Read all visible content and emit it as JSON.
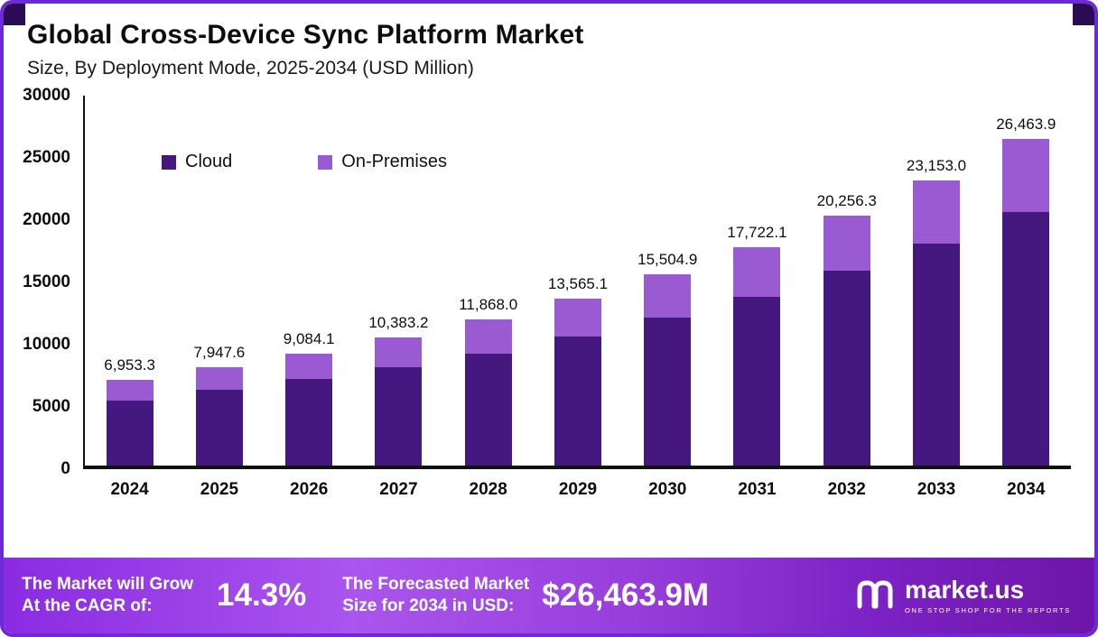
{
  "header": {
    "title": "Global Cross-Device Sync Platform Market",
    "subtitle": "Size, By Deployment Mode, 2025-2034 (USD Million)"
  },
  "chart_data": {
    "type": "bar",
    "stacked": true,
    "title": "Global Cross-Device Sync Platform Market",
    "subtitle": "Size, By Deployment Mode, 2025-2034 (USD Million)",
    "unit": "USD Million",
    "categories": [
      "2024",
      "2025",
      "2026",
      "2027",
      "2028",
      "2029",
      "2030",
      "2031",
      "2032",
      "2033",
      "2034"
    ],
    "series": [
      {
        "name": "Cloud",
        "color": "#44187e",
        "values": [
          5290,
          6150,
          7000,
          7950,
          9100,
          10450,
          12000,
          13700,
          15800,
          18000,
          20550
        ]
      },
      {
        "name": "On-Premises",
        "color": "#9a5bd2",
        "values": [
          1663.3,
          1797.6,
          2084.1,
          2433.2,
          2768.0,
          3115.1,
          3504.9,
          4022.1,
          4456.3,
          5153.0,
          5913.9
        ]
      }
    ],
    "totals": [
      6953.3,
      7947.6,
      9084.1,
      10383.2,
      11868.0,
      13565.1,
      15504.9,
      17722.1,
      20256.3,
      23153.0,
      26463.9
    ],
    "total_labels": [
      "6,953.3",
      "7,947.6",
      "9,084.1",
      "10,383.2",
      "11,868.0",
      "13,565.1",
      "15,504.9",
      "17,722.1",
      "20,256.3",
      "23,153.0",
      "26,463.9"
    ],
    "ylim": [
      0,
      30000
    ],
    "yticks": [
      "30000",
      "25000",
      "20000",
      "15000",
      "10000",
      "5000",
      "0"
    ],
    "legend_position": "top-left-inside",
    "grid": false
  },
  "footer": {
    "cagr_label_line1": "The Market will Grow",
    "cagr_label_line2": "At the CAGR of:",
    "cagr_value": "14.3%",
    "forecast_label_line1": "The Forecasted Market",
    "forecast_label_line2": "Size for 2034 in USD:",
    "forecast_value": "$26,463.9M",
    "brand": "market.us",
    "brand_tagline": "ONE STOP SHOP FOR THE REPORTS"
  }
}
